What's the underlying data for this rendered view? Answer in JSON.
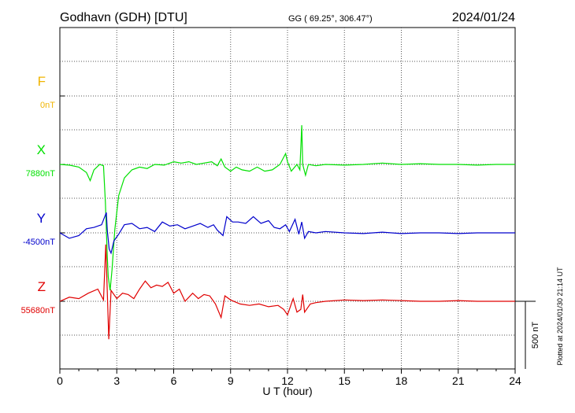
{
  "header": {
    "station": "Godhavn (GDH)  [DTU]",
    "coords": "GG ( 69.25°, 306.47°)",
    "date": "2024/01/24"
  },
  "footer": {
    "xlabel": "U T (hour)",
    "plotted": "Plotted at 2024/01/30 21:14 UT",
    "scale_label": "500 nT"
  },
  "colors": {
    "F": "#f0b400",
    "X": "#00e000",
    "Y": "#0000cc",
    "Z": "#e00000",
    "axis": "#000000"
  },
  "chart_data": {
    "type": "line",
    "x_range": [
      0,
      24
    ],
    "x_ticks": [
      "0",
      "3",
      "6",
      "9",
      "12",
      "15",
      "18",
      "21",
      "24"
    ],
    "grid": "dotted",
    "scale_bar_nT": 500,
    "series": [
      {
        "name": "F",
        "baseline_label": "0nT",
        "baseline_value": 0,
        "points": []
      },
      {
        "name": "X",
        "baseline_label": "7880nT",
        "baseline_value": 7880,
        "points": [
          [
            0,
            7880
          ],
          [
            0.5,
            7875
          ],
          [
            1,
            7860
          ],
          [
            1.4,
            7820
          ],
          [
            1.6,
            7760
          ],
          [
            1.8,
            7840
          ],
          [
            2.1,
            7880
          ],
          [
            2.3,
            7870
          ],
          [
            2.4,
            7600
          ],
          [
            2.5,
            7200
          ],
          [
            2.55,
            7050
          ],
          [
            2.65,
            6950
          ],
          [
            2.75,
            7100
          ],
          [
            2.9,
            7400
          ],
          [
            3.1,
            7650
          ],
          [
            3.4,
            7780
          ],
          [
            3.8,
            7840
          ],
          [
            4.2,
            7860
          ],
          [
            4.6,
            7850
          ],
          [
            5,
            7880
          ],
          [
            5.5,
            7875
          ],
          [
            6,
            7900
          ],
          [
            6.4,
            7890
          ],
          [
            6.8,
            7900
          ],
          [
            7.2,
            7880
          ],
          [
            7.6,
            7890
          ],
          [
            8,
            7900
          ],
          [
            8.3,
            7870
          ],
          [
            8.5,
            7920
          ],
          [
            8.7,
            7860
          ],
          [
            9,
            7830
          ],
          [
            9.3,
            7860
          ],
          [
            9.6,
            7840
          ],
          [
            10,
            7830
          ],
          [
            10.4,
            7860
          ],
          [
            10.8,
            7830
          ],
          [
            11.2,
            7840
          ],
          [
            11.6,
            7880
          ],
          [
            11.9,
            7960
          ],
          [
            12,
            7900
          ],
          [
            12.2,
            7830
          ],
          [
            12.5,
            7880
          ],
          [
            12.65,
            7840
          ],
          [
            12.75,
            8170
          ],
          [
            12.8,
            7880
          ],
          [
            12.95,
            7800
          ],
          [
            13.1,
            7880
          ],
          [
            13.5,
            7870
          ],
          [
            14,
            7880
          ],
          [
            15,
            7875
          ],
          [
            16,
            7880
          ],
          [
            17,
            7890
          ],
          [
            18,
            7880
          ],
          [
            19,
            7885
          ],
          [
            20,
            7880
          ],
          [
            21,
            7880
          ],
          [
            22,
            7875
          ],
          [
            23,
            7880
          ],
          [
            24,
            7880
          ]
        ]
      },
      {
        "name": "Y",
        "baseline_label": "-4500nT",
        "baseline_value": -4500,
        "points": [
          [
            0,
            -4500
          ],
          [
            0.5,
            -4540
          ],
          [
            1,
            -4520
          ],
          [
            1.4,
            -4470
          ],
          [
            1.8,
            -4460
          ],
          [
            2.2,
            -4440
          ],
          [
            2.45,
            -4350
          ],
          [
            2.5,
            -4480
          ],
          [
            2.6,
            -4620
          ],
          [
            2.7,
            -4650
          ],
          [
            2.85,
            -4560
          ],
          [
            3.1,
            -4510
          ],
          [
            3.4,
            -4440
          ],
          [
            3.8,
            -4430
          ],
          [
            4.2,
            -4470
          ],
          [
            4.6,
            -4460
          ],
          [
            5,
            -4490
          ],
          [
            5.4,
            -4420
          ],
          [
            5.8,
            -4450
          ],
          [
            6.2,
            -4440
          ],
          [
            6.6,
            -4470
          ],
          [
            7,
            -4450
          ],
          [
            7.4,
            -4430
          ],
          [
            7.8,
            -4460
          ],
          [
            8.1,
            -4440
          ],
          [
            8.3,
            -4480
          ],
          [
            8.6,
            -4520
          ],
          [
            8.8,
            -4380
          ],
          [
            9.1,
            -4420
          ],
          [
            9.4,
            -4420
          ],
          [
            9.8,
            -4430
          ],
          [
            10.2,
            -4380
          ],
          [
            10.6,
            -4430
          ],
          [
            11,
            -4410
          ],
          [
            11.3,
            -4460
          ],
          [
            11.6,
            -4470
          ],
          [
            11.9,
            -4440
          ],
          [
            12.1,
            -4490
          ],
          [
            12.4,
            -4400
          ],
          [
            12.6,
            -4510
          ],
          [
            12.75,
            -4420
          ],
          [
            12.9,
            -4540
          ],
          [
            13.1,
            -4490
          ],
          [
            13.5,
            -4500
          ],
          [
            14,
            -4490
          ],
          [
            15,
            -4500
          ],
          [
            16,
            -4505
          ],
          [
            17,
            -4495
          ],
          [
            18,
            -4505
          ],
          [
            19,
            -4500
          ],
          [
            20,
            -4500
          ],
          [
            21,
            -4505
          ],
          [
            22,
            -4500
          ],
          [
            23,
            -4500
          ],
          [
            24,
            -4500
          ]
        ]
      },
      {
        "name": "Z",
        "baseline_label": "55680nT",
        "baseline_value": 55680,
        "points": [
          [
            0,
            55680
          ],
          [
            0.5,
            55710
          ],
          [
            1,
            55700
          ],
          [
            1.5,
            55740
          ],
          [
            2,
            55770
          ],
          [
            2.3,
            55690
          ],
          [
            2.42,
            56100
          ],
          [
            2.5,
            55750
          ],
          [
            2.58,
            55400
          ],
          [
            2.7,
            55760
          ],
          [
            3,
            55700
          ],
          [
            3.3,
            55740
          ],
          [
            3.6,
            55730
          ],
          [
            3.9,
            55700
          ],
          [
            4.2,
            55770
          ],
          [
            4.5,
            55830
          ],
          [
            4.8,
            55780
          ],
          [
            5.1,
            55800
          ],
          [
            5.4,
            55790
          ],
          [
            5.7,
            55820
          ],
          [
            6,
            55740
          ],
          [
            6.3,
            55770
          ],
          [
            6.6,
            55680
          ],
          [
            7,
            55740
          ],
          [
            7.3,
            55700
          ],
          [
            7.6,
            55730
          ],
          [
            7.9,
            55720
          ],
          [
            8.2,
            55660
          ],
          [
            8.5,
            55560
          ],
          [
            8.7,
            55720
          ],
          [
            9,
            55690
          ],
          [
            9.5,
            55660
          ],
          [
            10,
            55650
          ],
          [
            10.5,
            55660
          ],
          [
            11,
            55640
          ],
          [
            11.5,
            55650
          ],
          [
            11.8,
            55620
          ],
          [
            12,
            55580
          ],
          [
            12.3,
            55700
          ],
          [
            12.5,
            55600
          ],
          [
            12.7,
            55620
          ],
          [
            12.8,
            55730
          ],
          [
            12.9,
            55600
          ],
          [
            13.2,
            55660
          ],
          [
            13.5,
            55670
          ],
          [
            14,
            55680
          ],
          [
            15,
            55690
          ],
          [
            16,
            55685
          ],
          [
            17,
            55690
          ],
          [
            18,
            55685
          ],
          [
            19,
            55680
          ],
          [
            20,
            55680
          ],
          [
            21,
            55685
          ],
          [
            22,
            55680
          ],
          [
            23,
            55680
          ],
          [
            24,
            55680
          ]
        ]
      }
    ]
  }
}
